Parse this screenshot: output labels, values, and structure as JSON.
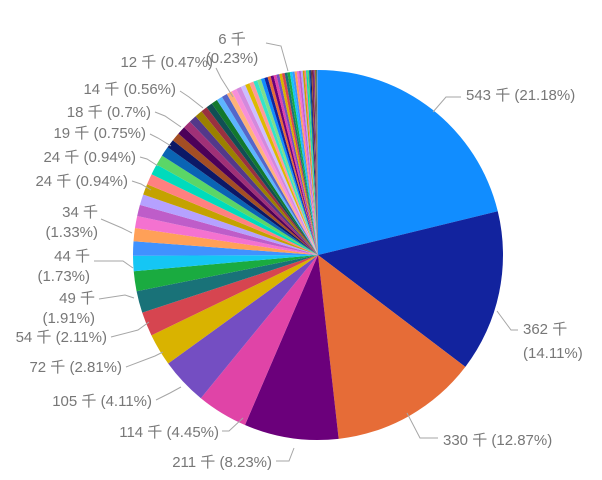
{
  "chart_data": {
    "type": "pie",
    "title": "",
    "unit": "千",
    "background": "#ffffff",
    "label_color": "#777777",
    "leader_color": "#a6a6a6",
    "legend": "none",
    "palette": [
      "#118DFF",
      "#12239E",
      "#E66C37",
      "#6B007B",
      "#E044A7",
      "#744EC2",
      "#D9B300",
      "#D64550",
      "#197278",
      "#1AAB40",
      "#15C6F4",
      "#4092FF",
      "#FFA058",
      "#F472D0",
      "#BE5DC9",
      "#B5A1FF",
      "#C4A200",
      "#FF8080",
      "#00DBBC",
      "#5BD667",
      "#0A64B4",
      "#0C1866",
      "#A34E24",
      "#4C0058",
      "#A03077",
      "#53388A",
      "#9B8000",
      "#993140",
      "#114F54",
      "#12782D",
      "#5DB5FF",
      "#5566C9",
      "#FFB37A",
      "#F78FD9",
      "#D389DD",
      "#CCBEFF",
      "#DDBA00",
      "#FF9999",
      "#35E3C9",
      "#7DDF8B"
    ],
    "slices": [
      {
        "pct": 21.18,
        "value": "543 千",
        "label_lines": [
          "543 千 (21.18%)"
        ]
      },
      {
        "pct": 14.11,
        "value": "362 千",
        "label_lines": [
          "362 千",
          "(14.11%)"
        ]
      },
      {
        "pct": 12.87,
        "value": "330 千",
        "label_lines": [
          "330 千 (12.87%)"
        ]
      },
      {
        "pct": 8.23,
        "value": "211 千",
        "label_lines": [
          "211 千 (8.23%)"
        ]
      },
      {
        "pct": 4.45,
        "value": "114 千",
        "label_lines": [
          "114 千 (4.45%)"
        ]
      },
      {
        "pct": 4.11,
        "value": "105 千",
        "label_lines": [
          "105 千 (4.11%)"
        ]
      },
      {
        "pct": 2.81,
        "value": "72 千",
        "label_lines": [
          "72 千 (2.81%)"
        ]
      },
      {
        "pct": 2.11,
        "value": "54 千",
        "label_lines": [
          "54 千 (2.11%)"
        ]
      },
      {
        "pct": 1.91,
        "value": "49 千",
        "label_lines": [
          "49 千",
          "(1.91%)"
        ]
      },
      {
        "pct": 1.73,
        "value": "44 千",
        "label_lines": [
          "44 千",
          "(1.73%)"
        ]
      },
      {
        "pct": 1.33,
        "value": "34 千",
        "label_lines": [
          "34 千",
          "(1.33%)"
        ]
      },
      {
        "pct": 1.25
      },
      {
        "pct": 1.15
      },
      {
        "pct": 1.05
      },
      {
        "pct": 0.98
      },
      {
        "pct": 0.94,
        "value": "24 千",
        "label_lines": [
          "24 千 (0.94%)"
        ]
      },
      {
        "pct": 0.94
      },
      {
        "pct": 0.94
      },
      {
        "pct": 0.94,
        "value": "24 千",
        "label_lines": [
          "24 千 (0.94%)"
        ]
      },
      {
        "pct": 0.9
      },
      {
        "pct": 0.86
      },
      {
        "pct": 0.75,
        "value": "19 千",
        "label_lines": [
          "19 千 (0.75%)"
        ]
      },
      {
        "pct": 0.74
      },
      {
        "pct": 0.73
      },
      {
        "pct": 0.7,
        "value": "18 千",
        "label_lines": [
          "18 千 (0.7%)"
        ]
      },
      {
        "pct": 0.68
      },
      {
        "pct": 0.66
      },
      {
        "pct": 0.56,
        "value": "14 千",
        "label_lines": [
          "14 千 (0.56%)"
        ]
      },
      {
        "pct": 0.55
      },
      {
        "pct": 0.53
      },
      {
        "pct": 0.51
      },
      {
        "pct": 0.49
      },
      {
        "pct": 0.47,
        "value": "12 千",
        "label_lines": [
          "12 千 (0.47%)"
        ]
      },
      {
        "pct": 0.45
      },
      {
        "pct": 0.43
      },
      {
        "pct": 0.41
      },
      {
        "pct": 0.39
      },
      {
        "pct": 0.37
      },
      {
        "pct": 0.35
      },
      {
        "pct": 0.33
      },
      {
        "pct": 0.31
      },
      {
        "pct": 0.29
      },
      {
        "pct": 0.27
      },
      {
        "pct": 0.26
      },
      {
        "pct": 0.25
      },
      {
        "pct": 0.25
      },
      {
        "pct": 0.24
      },
      {
        "pct": 0.24
      },
      {
        "pct": 0.23,
        "value": "6 千",
        "label_lines": [
          "6 千",
          "(0.23%)"
        ]
      },
      {
        "pct": 0.22
      },
      {
        "pct": 0.21
      },
      {
        "pct": 0.2
      },
      {
        "pct": 0.19
      },
      {
        "pct": 0.18
      },
      {
        "pct": 0.17
      },
      {
        "pct": 0.16
      },
      {
        "pct": 0.15
      },
      {
        "pct": 0.14
      },
      {
        "pct": 0.13
      },
      {
        "pct": 0.12
      },
      {
        "pct": 0.11
      },
      {
        "pct": 0.1
      },
      {
        "pct": 0.09
      },
      {
        "pct": 0.08
      },
      {
        "pct": 0.07
      },
      {
        "pct": 0.06
      },
      {
        "pct": 0.06
      },
      {
        "pct": 0.05
      },
      {
        "pct": 0.04
      },
      {
        "pct": 0.04
      },
      {
        "pct": 0.04
      },
      {
        "pct": 0.04
      }
    ]
  }
}
